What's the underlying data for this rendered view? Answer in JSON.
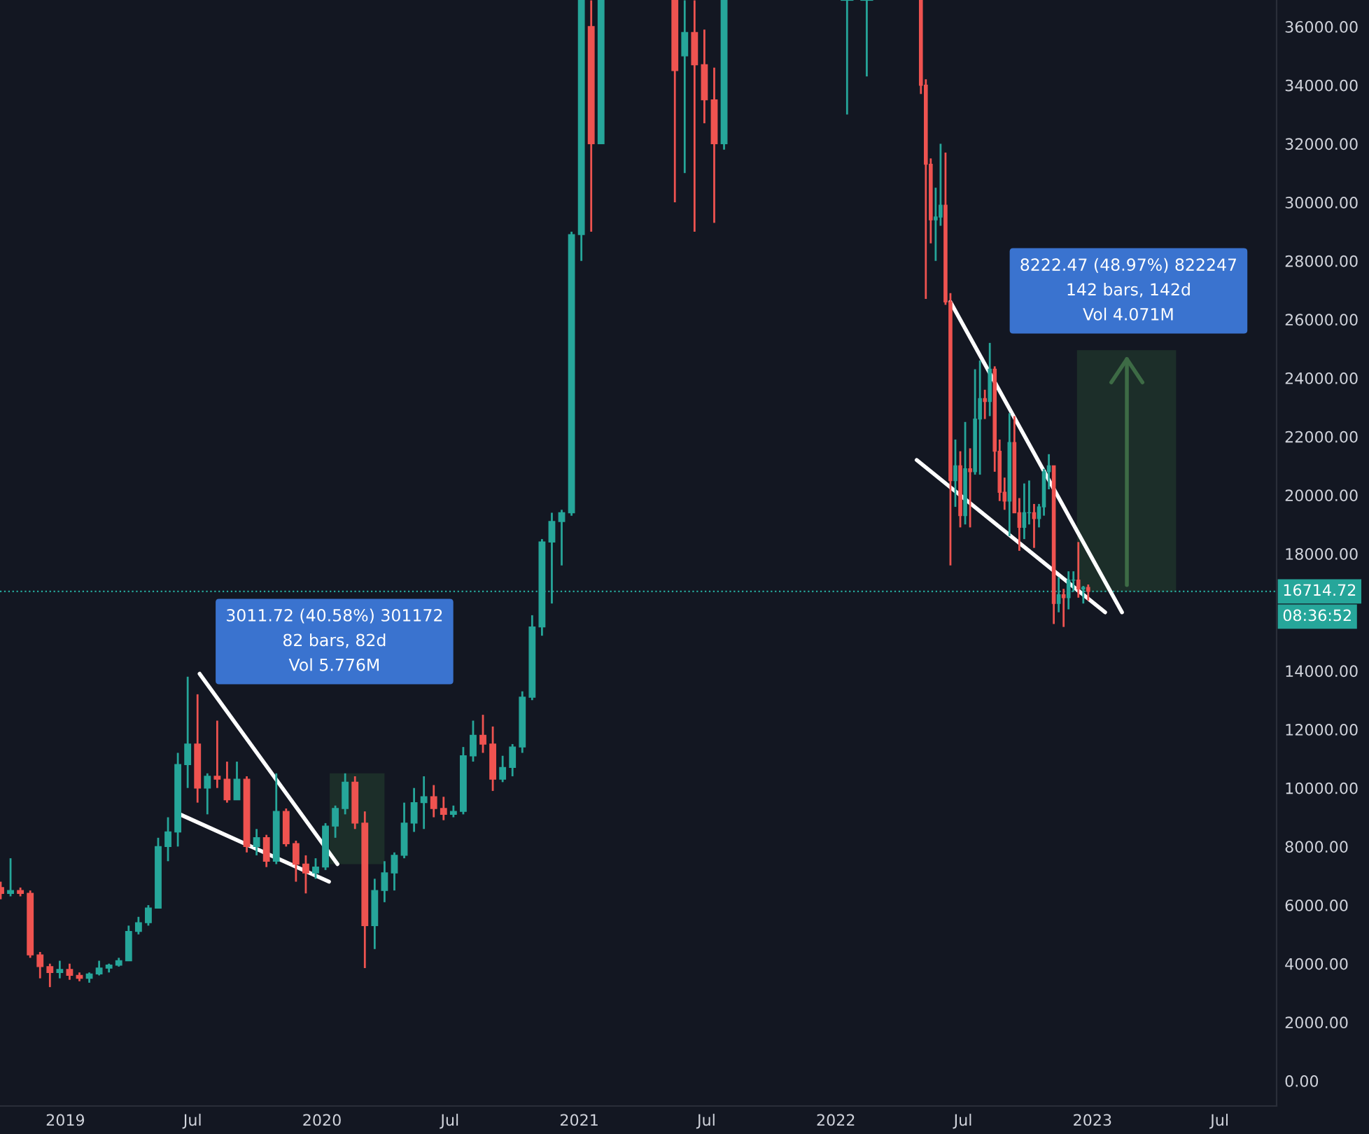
{
  "chart_data": {
    "type": "candlestick",
    "grid": false,
    "xlim": [
      "2018-09-30",
      "2023-09-20"
    ],
    "xticks": [
      {
        "value": "2019-01-01",
        "label": "2019"
      },
      {
        "value": "2019-07-01",
        "label": "Jul"
      },
      {
        "value": "2020-01-01",
        "label": "2020"
      },
      {
        "value": "2020-07-01",
        "label": "Jul"
      },
      {
        "value": "2021-01-01",
        "label": "2021"
      },
      {
        "value": "2021-07-01",
        "label": "Jul"
      },
      {
        "value": "2022-01-01",
        "label": "2022"
      },
      {
        "value": "2022-07-01",
        "label": "Jul"
      },
      {
        "value": "2023-01-01",
        "label": "2023"
      },
      {
        "value": "2023-07-01",
        "label": "Jul"
      }
    ],
    "ylim": [
      -860,
      36910
    ],
    "yticks": [
      {
        "value": 0,
        "label": "0.00"
      },
      {
        "value": 2000,
        "label": "2000.00"
      },
      {
        "value": 4000,
        "label": "4000.00"
      },
      {
        "value": 6000,
        "label": "6000.00"
      },
      {
        "value": 8000,
        "label": "8000.00"
      },
      {
        "value": 10000,
        "label": "10000.00"
      },
      {
        "value": 12000,
        "label": "12000.00"
      },
      {
        "value": 14000,
        "label": "14000.00"
      },
      {
        "value": 18000,
        "label": "18000.00"
      },
      {
        "value": 20000,
        "label": "20000.00"
      },
      {
        "value": 22000,
        "label": "22000.00"
      },
      {
        "value": 24000,
        "label": "24000.00"
      },
      {
        "value": 26000,
        "label": "26000.00"
      },
      {
        "value": 28000,
        "label": "28000.00"
      },
      {
        "value": 30000,
        "label": "30000.00"
      },
      {
        "value": 32000,
        "label": "32000.00"
      },
      {
        "value": 34000,
        "label": "34000.00"
      },
      {
        "value": 36000,
        "label": "36000.00"
      }
    ],
    "x": [
      "2018-10-01",
      "2018-10-15",
      "2018-10-29",
      "2018-11-12",
      "2018-11-26",
      "2018-12-10",
      "2018-12-24",
      "2019-01-07",
      "2019-01-21",
      "2019-02-04",
      "2019-02-18",
      "2019-03-04",
      "2019-03-18",
      "2019-04-01",
      "2019-04-15",
      "2019-04-29",
      "2019-05-13",
      "2019-05-27",
      "2019-06-10",
      "2019-06-24",
      "2019-07-08",
      "2019-07-22",
      "2019-08-05",
      "2019-08-19",
      "2019-09-02",
      "2019-09-16",
      "2019-09-30",
      "2019-10-14",
      "2019-10-28",
      "2019-11-11",
      "2019-11-25",
      "2019-12-09",
      "2019-12-23",
      "2020-01-06",
      "2020-01-20",
      "2020-02-03",
      "2020-02-17",
      "2020-03-02",
      "2020-03-16",
      "2020-03-30",
      "2020-04-13",
      "2020-04-27",
      "2020-05-11",
      "2020-05-25",
      "2020-06-08",
      "2020-06-22",
      "2020-07-06",
      "2020-07-20",
      "2020-08-03",
      "2020-08-17",
      "2020-08-31",
      "2020-09-14",
      "2020-09-28",
      "2020-10-12",
      "2020-10-26",
      "2020-11-09",
      "2020-11-23",
      "2020-12-07",
      "2020-12-21",
      "2021-01-04",
      "2021-01-18",
      "2021-02-01",
      "2021-05-17",
      "2021-05-31",
      "2021-06-14",
      "2021-06-28",
      "2021-07-12",
      "2021-07-26",
      "2022-01-17",
      "2022-02-14",
      "2022-05-02",
      "2022-05-09",
      "2022-05-16",
      "2022-05-23",
      "2022-05-30",
      "2022-06-06",
      "2022-06-13",
      "2022-06-20",
      "2022-06-27",
      "2022-07-04",
      "2022-07-11",
      "2022-07-18",
      "2022-07-25",
      "2022-08-01",
      "2022-08-08",
      "2022-08-15",
      "2022-08-22",
      "2022-08-29",
      "2022-09-05",
      "2022-09-12",
      "2022-09-19",
      "2022-09-26",
      "2022-10-03",
      "2022-10-10",
      "2022-10-17",
      "2022-10-24",
      "2022-10-31",
      "2022-11-07",
      "2022-11-14",
      "2022-11-21",
      "2022-11-28",
      "2022-12-05",
      "2022-12-12",
      "2022-12-19",
      "2022-12-26"
    ],
    "ohlc": [
      [
        6600,
        6800,
        6200,
        6400
      ],
      [
        6400,
        7600,
        6300,
        6500
      ],
      [
        6500,
        6600,
        6300,
        6400
      ],
      [
        6400,
        6500,
        4200,
        4300
      ],
      [
        4300,
        4400,
        3500,
        3900
      ],
      [
        3900,
        4000,
        3200,
        3700
      ],
      [
        3700,
        4100,
        3500,
        3800
      ],
      [
        3800,
        4000,
        3450,
        3600
      ],
      [
        3600,
        3700,
        3400,
        3500
      ],
      [
        3500,
        3700,
        3350,
        3650
      ],
      [
        3650,
        4100,
        3600,
        3850
      ],
      [
        3850,
        4000,
        3700,
        3950
      ],
      [
        3950,
        4200,
        3900,
        4100
      ],
      [
        4100,
        5300,
        4100,
        5100
      ],
      [
        5100,
        5600,
        5000,
        5400
      ],
      [
        5400,
        6000,
        5300,
        5900
      ],
      [
        5900,
        8300,
        5900,
        8000
      ],
      [
        8000,
        9000,
        7500,
        8500
      ],
      [
        8500,
        11200,
        8000,
        10800
      ],
      [
        10800,
        13800,
        10000,
        11500
      ],
      [
        11500,
        13200,
        9500,
        10000
      ],
      [
        10000,
        10500,
        9100,
        10400
      ],
      [
        10400,
        12300,
        10000,
        10300
      ],
      [
        10300,
        10900,
        9500,
        9600
      ],
      [
        9600,
        10900,
        9600,
        10300
      ],
      [
        10300,
        10400,
        7800,
        8000
      ],
      [
        8000,
        8600,
        7700,
        8300
      ],
      [
        8300,
        8400,
        7300,
        7500
      ],
      [
        7500,
        10500,
        7400,
        9200
      ],
      [
        9200,
        9300,
        8000,
        8100
      ],
      [
        8100,
        8200,
        6800,
        7400
      ],
      [
        7400,
        7700,
        6400,
        7100
      ],
      [
        7100,
        7600,
        6900,
        7300
      ],
      [
        7300,
        8800,
        7200,
        8700
      ],
      [
        8700,
        9400,
        8300,
        9300
      ],
      [
        9300,
        10500,
        9100,
        10200
      ],
      [
        10200,
        10400,
        8600,
        8800
      ],
      [
        8800,
        9200,
        3850,
        5300
      ],
      [
        5300,
        6900,
        4500,
        6500
      ],
      [
        6500,
        7500,
        6100,
        7100
      ],
      [
        7100,
        7800,
        6500,
        7700
      ],
      [
        7700,
        9500,
        7600,
        8800
      ],
      [
        8800,
        10000,
        8500,
        9500
      ],
      [
        9500,
        10400,
        8600,
        9700
      ],
      [
        9700,
        10100,
        9000,
        9300
      ],
      [
        9300,
        9700,
        8900,
        9100
      ],
      [
        9100,
        9400,
        9000,
        9200
      ],
      [
        9200,
        11400,
        9100,
        11100
      ],
      [
        11100,
        12300,
        10900,
        11800
      ],
      [
        11800,
        12500,
        11200,
        11500
      ],
      [
        11500,
        12100,
        9900,
        10300
      ],
      [
        10300,
        11100,
        10200,
        10700
      ],
      [
        10700,
        11500,
        10400,
        11400
      ],
      [
        11400,
        13300,
        11200,
        13100
      ],
      [
        13100,
        15900,
        13000,
        15500
      ],
      [
        15500,
        18500,
        15200,
        18400
      ],
      [
        18400,
        19400,
        16300,
        19100
      ],
      [
        19100,
        19500,
        17600,
        19400
      ],
      [
        19400,
        29000,
        19300,
        28900
      ],
      [
        28900,
        36900,
        28000,
        36900
      ],
      [
        36000,
        36900,
        29000,
        32000
      ],
      [
        32000,
        36900,
        32000,
        36900
      ],
      [
        36900,
        36900,
        30000,
        34500
      ],
      [
        35000,
        36900,
        31000,
        35800
      ],
      [
        35800,
        36900,
        29000,
        34700
      ],
      [
        34700,
        35900,
        32700,
        33500
      ],
      [
        33500,
        34600,
        29300,
        32000
      ],
      [
        32000,
        36900,
        31800,
        36900
      ],
      [
        36900,
        36900,
        33000,
        36900
      ],
      [
        36900,
        36900,
        34300,
        36900
      ],
      [
        36900,
        36900,
        33700,
        34000
      ],
      [
        34000,
        34200,
        26700,
        31300
      ],
      [
        31300,
        31500,
        28600,
        29400
      ],
      [
        29400,
        30500,
        28000,
        29500
      ],
      [
        29500,
        32000,
        29200,
        29900
      ],
      [
        29900,
        31700,
        26500,
        26600
      ],
      [
        26600,
        26900,
        17600,
        20500
      ],
      [
        20500,
        21900,
        19600,
        21000
      ],
      [
        21000,
        21500,
        18900,
        19300
      ],
      [
        19300,
        22500,
        19000,
        20900
      ],
      [
        20900,
        21600,
        18900,
        20800
      ],
      [
        20800,
        24300,
        20700,
        22600
      ],
      [
        22600,
        24600,
        20700,
        23300
      ],
      [
        23300,
        23600,
        22600,
        23200
      ],
      [
        23200,
        25200,
        22700,
        24300
      ],
      [
        24300,
        24400,
        20800,
        21500
      ],
      [
        21500,
        21900,
        19800,
        20100
      ],
      [
        20100,
        20600,
        19500,
        19800
      ],
      [
        19800,
        22800,
        18600,
        21800
      ],
      [
        21800,
        22700,
        19400,
        19400
      ],
      [
        19400,
        19900,
        18100,
        18900
      ],
      [
        18900,
        20400,
        18500,
        19400
      ],
      [
        19400,
        20500,
        19000,
        19400
      ],
      [
        19400,
        19700,
        18200,
        19200
      ],
      [
        19200,
        19700,
        18900,
        19600
      ],
      [
        19600,
        20900,
        19300,
        20800
      ],
      [
        20800,
        21400,
        20200,
        21000
      ],
      [
        21000,
        21000,
        15600,
        16300
      ],
      [
        16300,
        17200,
        16000,
        16600
      ],
      [
        16600,
        16800,
        15500,
        16500
      ],
      [
        16500,
        17400,
        16100,
        17100
      ],
      [
        17100,
        17400,
        16700,
        17100
      ],
      [
        17100,
        18400,
        16500,
        16800
      ],
      [
        16800,
        16900,
        16300,
        16850
      ],
      [
        16850,
        16950,
        16400,
        16714.72
      ]
    ],
    "series": [
      {
        "type": "line",
        "color": "#ffffff",
        "x": [
          "2019-07-11",
          "2020-01-23"
        ],
        "values": [
          13900,
          7400
        ]
      },
      {
        "type": "line",
        "color": "#ffffff",
        "x": [
          "2019-06-13",
          "2020-01-11"
        ],
        "values": [
          9100,
          6800
        ]
      },
      {
        "type": "line",
        "color": "#ffffff",
        "x": [
          "2022-06-13",
          "2023-02-12"
        ],
        "values": [
          26600,
          16000
        ]
      },
      {
        "type": "line",
        "color": "#ffffff",
        "x": [
          "2022-04-26",
          "2023-01-19"
        ],
        "values": [
          21200,
          16000
        ]
      }
    ],
    "ref_lines": [
      {
        "axis": "y",
        "value": 16714.72,
        "label": "16714.72",
        "color": "#26a69a",
        "line_style": "dotted"
      }
    ],
    "annotations": [
      "3011.72 (40.58%) 301172\n82 bars, 82d\nVol 5.776M",
      "8222.47 (48.97%) 822247\n142 bars, 142d\nVol 4.071M",
      "08:36:52"
    ]
  }
}
